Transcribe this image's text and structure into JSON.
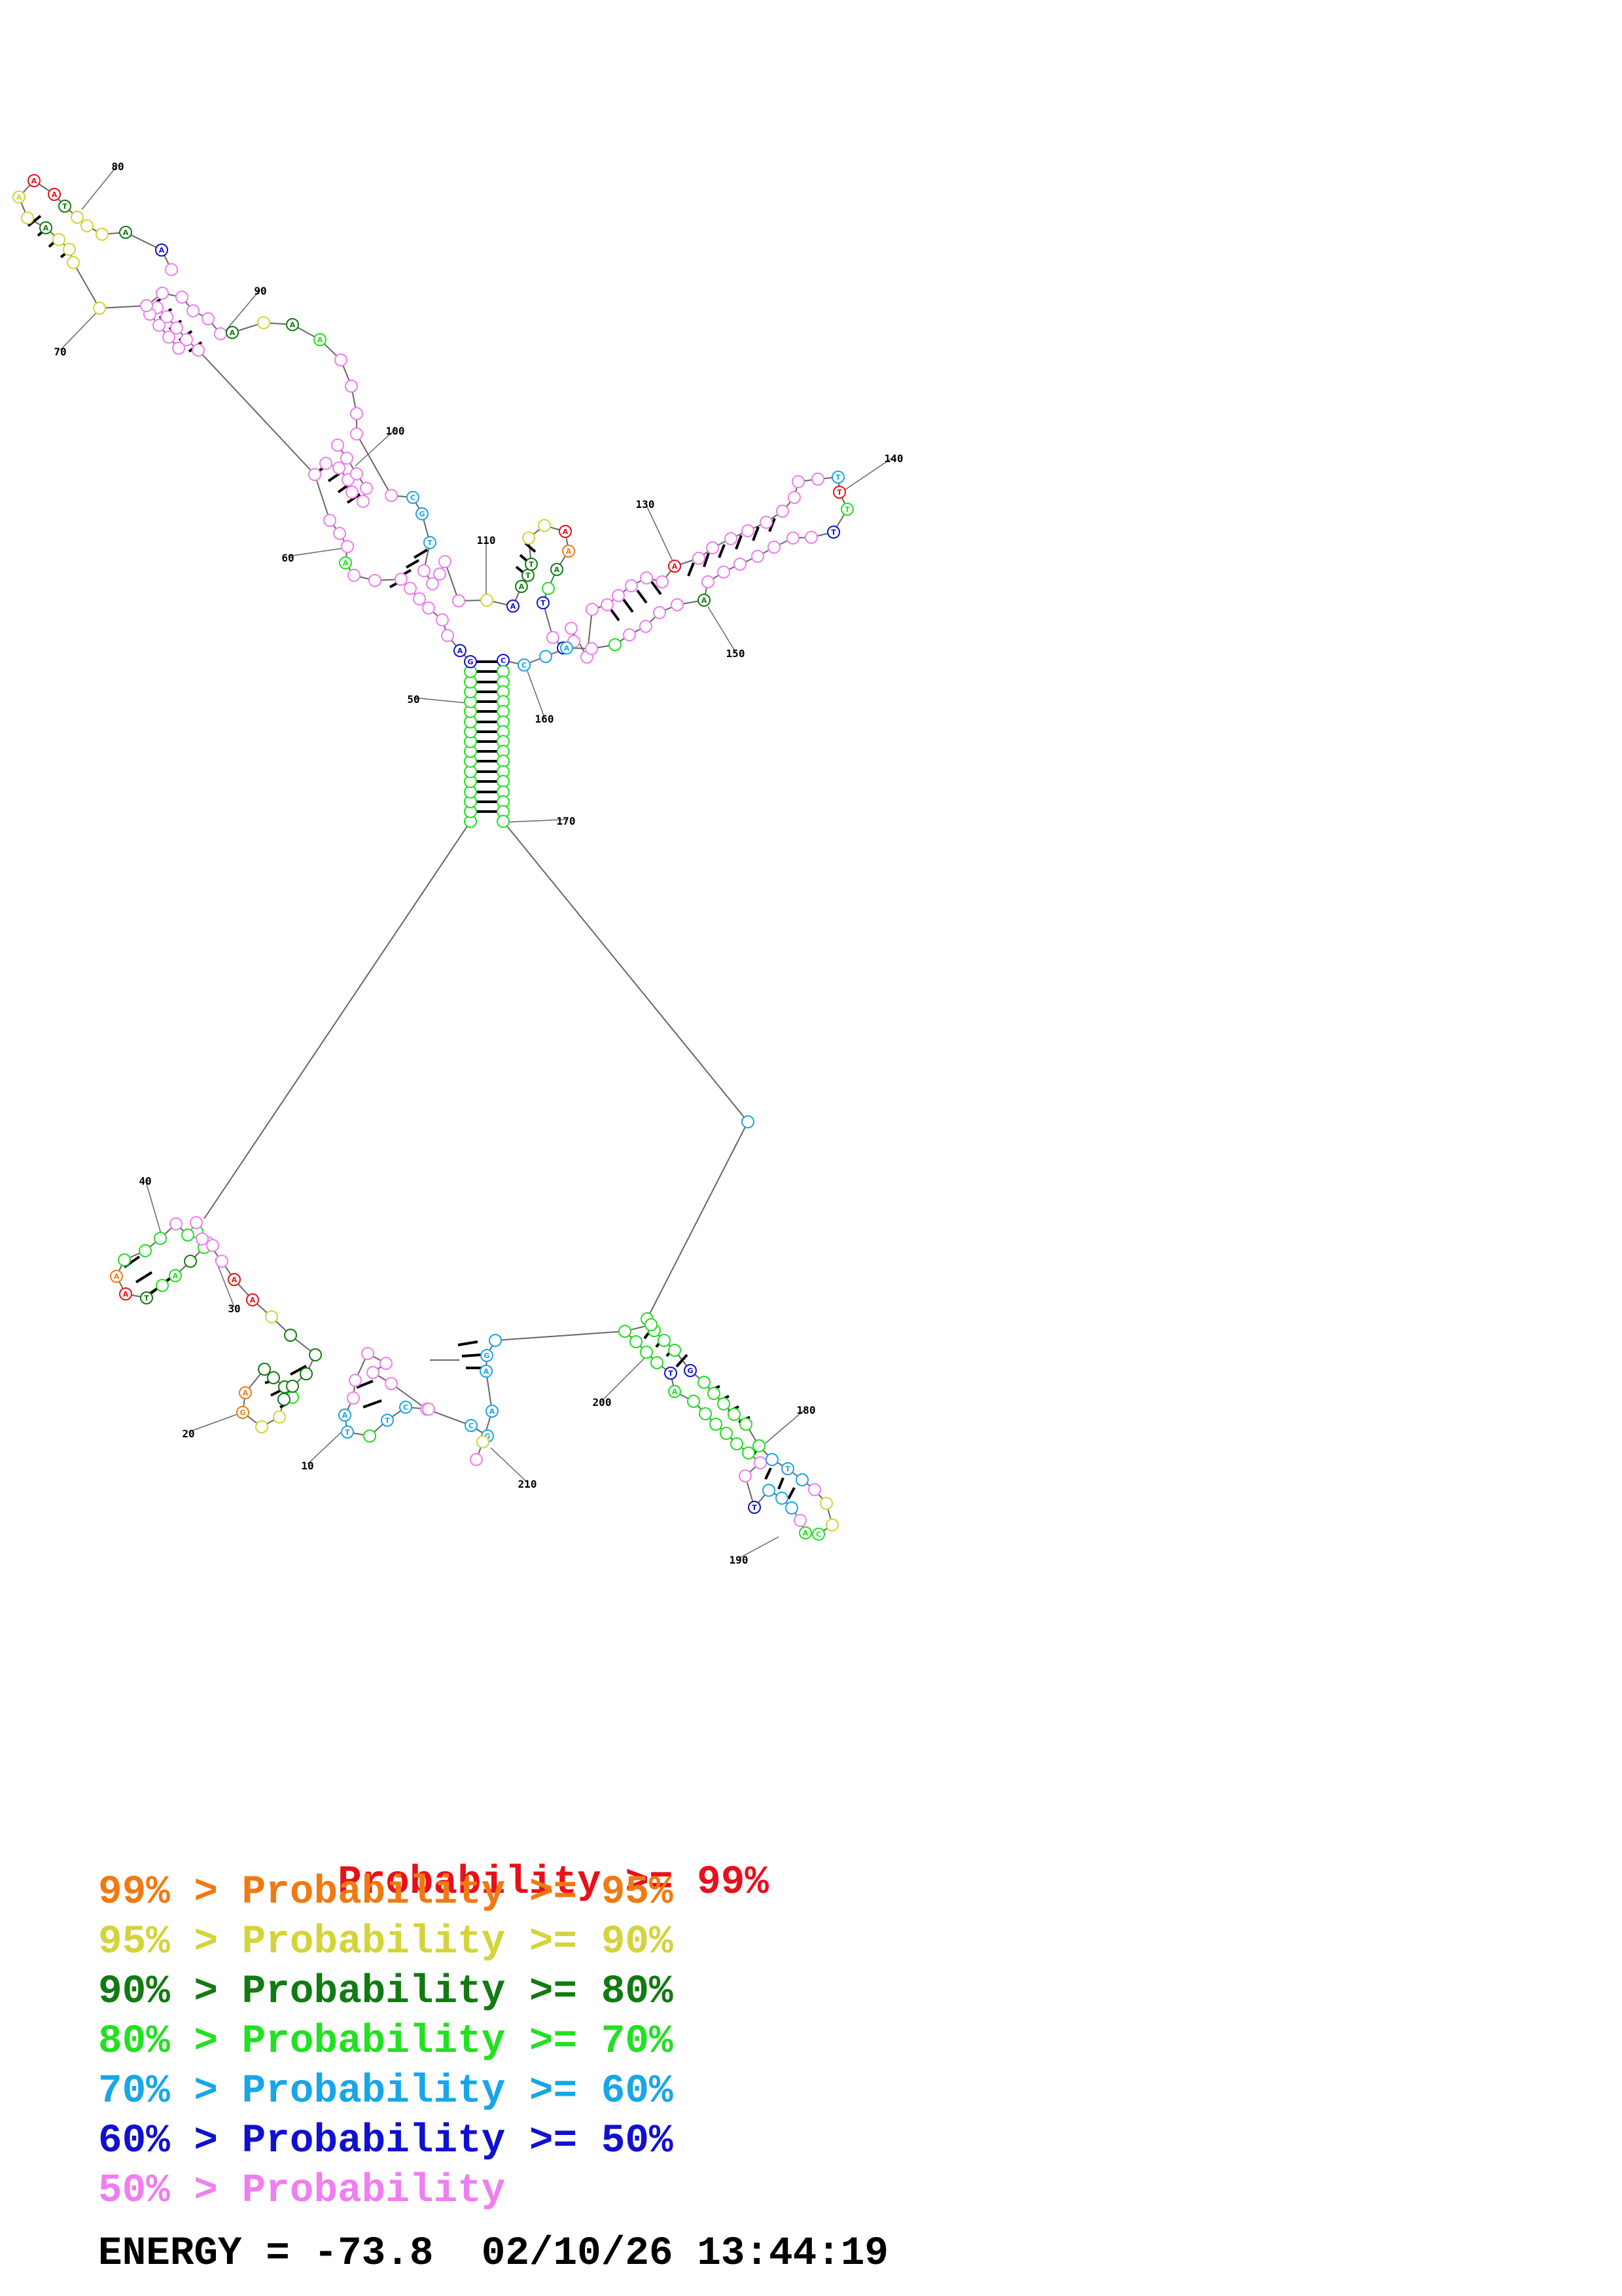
{
  "colors": {
    "p99": "#e8101a",
    "p95": "#f07a12",
    "p90": "#d4d43a",
    "p80": "#127a12",
    "p70": "#22e022",
    "p60": "#18a6e8",
    "p50": "#1010d0",
    "plow": "#f07ef0",
    "backbone": "#666666",
    "pair": "#000000"
  },
  "structure": {
    "position_labels": [
      "10",
      "20",
      "30",
      "40",
      "50",
      "60",
      "70",
      "80",
      "90",
      "100",
      "110",
      "130",
      "140",
      "150",
      "160",
      "170",
      "180",
      "190",
      "200",
      "210"
    ]
  },
  "legend": {
    "line1": {
      "prefix": "",
      "mid": "",
      "text": "Probability >= 99%"
    },
    "line2": {
      "prefix": "99%",
      "mid": " > ",
      "text": "Probability >= 95%"
    },
    "line3": {
      "prefix": "95%",
      "mid": " > ",
      "text": "Probability >= 90%"
    },
    "line4": {
      "prefix": "90%",
      "mid": " > ",
      "text": "Probability >= 80%"
    },
    "line5": {
      "prefix": "80%",
      "mid": " > ",
      "text": "Probability >= 70%"
    },
    "line6": {
      "prefix": "70%",
      "mid": " > ",
      "text": "Probability >= 60%"
    },
    "line7": {
      "prefix": "60%",
      "mid": " > ",
      "text": "Probability >= 50%"
    },
    "line8": {
      "prefix": "50%",
      "mid": " > ",
      "text": "Probability"
    }
  },
  "footer": {
    "energy_label": "ENERGY = ",
    "energy_value": "-73.8",
    "date": "02/10/26",
    "time": "13:44:19"
  }
}
